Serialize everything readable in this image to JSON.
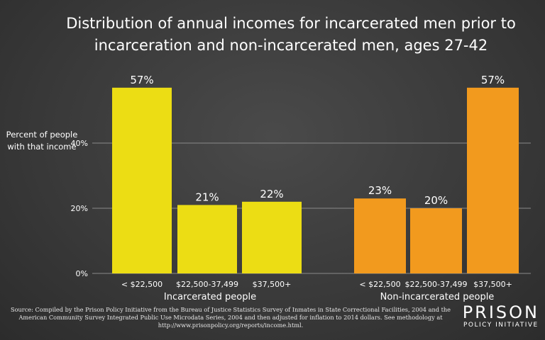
{
  "chart_data": {
    "type": "bar",
    "title": "Distribution of annual incomes for incarcerated men prior to incarceration and non-incarcerated men, ages 27-42",
    "ylabel": "Percent of people with that income",
    "ylim": [
      0,
      60
    ],
    "yticks": [
      "0%",
      "20%",
      "40%"
    ],
    "ytick_values": [
      0,
      20,
      40
    ],
    "grid": true,
    "groups": [
      {
        "name": "Incarcerated people",
        "color": "#ecdd14",
        "categories": [
          "< $22,500",
          "$22,500-37,499",
          "$37,500+"
        ],
        "values": [
          57,
          21,
          22
        ],
        "labels": [
          "57%",
          "21%",
          "22%"
        ]
      },
      {
        "name": "Non-incarcerated people",
        "color": "#f29a1e",
        "categories": [
          "< $22,500",
          "$22,500-37,499",
          "$37,500+"
        ],
        "values": [
          23,
          20,
          57
        ],
        "labels": [
          "23%",
          "20%",
          "57%"
        ]
      }
    ]
  },
  "source": "Source: Compiled by the Prison Policy Initiative from the Bureau of Justice Statistics Survey of Inmates in State Correctional Facilities, 2004 and the American Community Survey Integrated Public Use Microdata Series, 2004 and then adjusted for inflation to 2014 dollars. See methodology at http://www.prisonpolicy.org/reports/income.html.",
  "logo": {
    "top": "PRISON",
    "bottom": "POLICY INITIATIVE"
  }
}
